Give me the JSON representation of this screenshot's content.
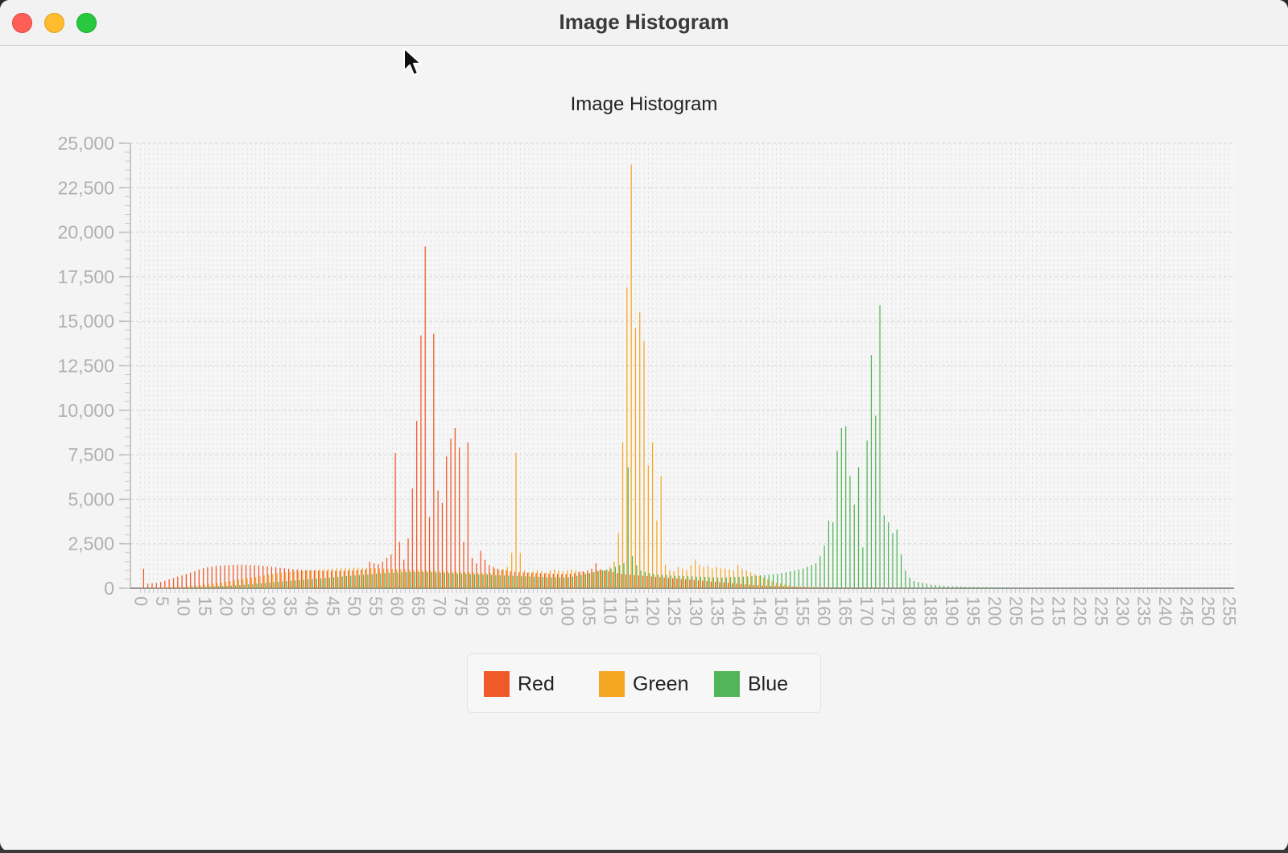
{
  "window": {
    "title": "Image Histogram"
  },
  "chart_data": {
    "type": "bar",
    "title": "Image Histogram",
    "xlabel": "",
    "ylabel": "",
    "ylim": [
      0,
      25000
    ],
    "yticks": [
      0,
      2500,
      5000,
      7500,
      10000,
      12500,
      15000,
      17500,
      20000,
      22500,
      25000
    ],
    "ytick_labels": [
      "0",
      "2,500",
      "5,000",
      "7,500",
      "10,000",
      "12,500",
      "15,000",
      "17,500",
      "20,000",
      "22,500",
      "25,000"
    ],
    "xlim": [
      0,
      255
    ],
    "xticks": [
      0,
      5,
      10,
      15,
      20,
      25,
      30,
      35,
      40,
      45,
      50,
      55,
      60,
      65,
      70,
      75,
      80,
      85,
      90,
      95,
      100,
      105,
      110,
      115,
      120,
      125,
      130,
      135,
      140,
      145,
      150,
      155,
      160,
      165,
      170,
      175,
      180,
      185,
      190,
      195,
      200,
      205,
      210,
      215,
      220,
      225,
      230,
      235,
      240,
      245,
      250,
      255
    ],
    "grid": true,
    "legend_position": "bottom",
    "series": [
      {
        "name": "Red",
        "color": "#f05a28",
        "values": [
          0,
          1100,
          250,
          280,
          300,
          350,
          420,
          500,
          580,
          650,
          720,
          800,
          880,
          960,
          1050,
          1120,
          1180,
          1220,
          1250,
          1270,
          1290,
          1300,
          1310,
          1320,
          1320,
          1310,
          1300,
          1290,
          1280,
          1260,
          1240,
          1210,
          1180,
          1150,
          1120,
          1100,
          1080,
          1060,
          1040,
          1020,
          1010,
          1000,
          995,
          990,
          985,
          980,
          980,
          985,
          990,
          1000,
          1010,
          1020,
          1040,
          1060,
          1500,
          1400,
          1350,
          1500,
          1700,
          1900,
          7600,
          2600,
          1600,
          2800,
          5600,
          9400,
          14200,
          19200,
          4000,
          14300,
          5500,
          4800,
          7400,
          8400,
          9000,
          7900,
          2600,
          8200,
          1700,
          1400,
          2100,
          1600,
          1300,
          1200,
          1100,
          1050,
          1000,
          950,
          920,
          900,
          880,
          870,
          860,
          850,
          840,
          830,
          820,
          810,
          800,
          800,
          800,
          820,
          850,
          900,
          950,
          1000,
          1100,
          1400,
          1050,
          1000,
          950,
          900,
          850,
          800,
          780,
          760,
          740,
          720,
          700,
          680,
          660,
          640,
          620,
          600,
          580,
          560,
          540,
          520,
          500,
          480,
          460,
          440,
          420,
          400,
          380,
          360,
          340,
          320,
          300,
          280,
          260,
          240,
          220,
          200,
          180,
          160,
          150,
          140,
          130,
          120,
          110,
          100,
          95,
          90,
          85,
          80,
          75,
          70,
          65,
          60,
          55,
          50,
          48,
          46,
          44,
          42,
          40,
          38,
          36,
          34,
          32,
          30,
          28,
          26,
          24,
          22,
          20,
          18,
          16,
          14,
          12,
          10,
          9,
          8,
          7,
          6,
          5,
          4,
          3,
          2,
          1,
          1,
          1,
          1,
          1,
          0,
          0,
          0,
          0,
          0,
          0,
          0,
          0,
          0,
          0,
          0,
          0,
          0,
          0,
          0,
          0,
          0,
          0,
          0,
          0,
          0,
          0,
          0,
          0,
          0,
          0,
          0,
          0,
          0,
          0,
          0,
          0,
          0,
          0,
          0,
          0,
          0,
          0,
          0,
          0,
          0,
          0,
          0,
          0,
          0,
          0,
          0,
          0,
          0,
          0,
          0,
          0,
          0,
          0,
          0,
          0,
          0,
          0,
          0,
          0,
          0,
          0,
          0,
          0,
          0,
          0,
          0,
          0,
          0
        ]
      },
      {
        "name": "Green",
        "color": "#f5a623",
        "values": [
          0,
          0,
          20,
          30,
          40,
          50,
          60,
          70,
          80,
          90,
          100,
          120,
          140,
          160,
          180,
          200,
          230,
          260,
          290,
          320,
          360,
          400,
          440,
          480,
          520,
          560,
          600,
          640,
          680,
          720,
          760,
          800,
          840,
          870,
          900,
          920,
          940,
          960,
          980,
          1000,
          1020,
          1040,
          1060,
          1080,
          1090,
          1100,
          1110,
          1120,
          1130,
          1140,
          1150,
          1160,
          1150,
          1140,
          1130,
          1120,
          1110,
          1100,
          1090,
          1080,
          1070,
          1060,
          1050,
          1040,
          1030,
          1020,
          1010,
          1000,
          990,
          980,
          970,
          960,
          950,
          940,
          930,
          920,
          910,
          900,
          890,
          880,
          870,
          860,
          850,
          1100,
          1000,
          1050,
          1200,
          2000,
          7600,
          2000,
          1000,
          900,
          950,
          1000,
          950,
          900,
          1000,
          1050,
          1000,
          950,
          1000,
          1050,
          1000,
          950,
          900,
          850,
          900,
          1000,
          1050,
          1000,
          1200,
          1500,
          3100,
          8200,
          16900,
          23800,
          14600,
          15500,
          13900,
          6900,
          8200,
          3800,
          6300,
          1300,
          1000,
          950,
          1200,
          1100,
          1000,
          1300,
          1600,
          1300,
          1200,
          1250,
          1100,
          1200,
          1150,
          1100,
          1050,
          1000,
          1300,
          1100,
          1000,
          900,
          800,
          700,
          600,
          500,
          400,
          300,
          250,
          200,
          150,
          100,
          80,
          60,
          40,
          30,
          20,
          10,
          5,
          0,
          0,
          0,
          0,
          0,
          0,
          0,
          0,
          0,
          0,
          0,
          0,
          0,
          0,
          0,
          0,
          0,
          0,
          0,
          0,
          0,
          0,
          0,
          0,
          0,
          0,
          0,
          0,
          0,
          0,
          0,
          0,
          0,
          0,
          0,
          0,
          0,
          0,
          0,
          0,
          0,
          0,
          0,
          0,
          0,
          0,
          0,
          0,
          0,
          0,
          0,
          0,
          0,
          0,
          0,
          0,
          0,
          0,
          0,
          0,
          0,
          0,
          0,
          0,
          0,
          0,
          0,
          0,
          0,
          0,
          0,
          0,
          0,
          0,
          0,
          0,
          0,
          0,
          0,
          0,
          0,
          0,
          0,
          0,
          0,
          0,
          0,
          0,
          0,
          0,
          0
        ]
      },
      {
        "name": "Blue",
        "color": "#52b558",
        "values": [
          0,
          0,
          0,
          0,
          0,
          10,
          15,
          20,
          25,
          30,
          40,
          50,
          60,
          70,
          80,
          90,
          100,
          110,
          120,
          130,
          140,
          150,
          160,
          180,
          200,
          220,
          240,
          260,
          280,
          300,
          320,
          340,
          360,
          380,
          400,
          420,
          440,
          460,
          480,
          500,
          520,
          540,
          560,
          580,
          600,
          620,
          640,
          660,
          680,
          700,
          720,
          740,
          760,
          780,
          800,
          820,
          840,
          850,
          860,
          870,
          880,
          890,
          900,
          900,
          900,
          900,
          900,
          900,
          890,
          880,
          870,
          860,
          850,
          840,
          830,
          820,
          810,
          800,
          790,
          780,
          770,
          760,
          750,
          740,
          730,
          720,
          710,
          700,
          690,
          680,
          670,
          660,
          650,
          640,
          630,
          620,
          610,
          600,
          600,
          600,
          620,
          650,
          700,
          750,
          800,
          850,
          900,
          950,
          1000,
          1050,
          1100,
          1200,
          1300,
          1400,
          6800,
          1800,
          1300,
          1000,
          900,
          850,
          800,
          780,
          760,
          740,
          720,
          700,
          690,
          680,
          670,
          660,
          650,
          640,
          630,
          620,
          610,
          600,
          600,
          610,
          620,
          630,
          640,
          650,
          660,
          680,
          700,
          720,
          740,
          760,
          780,
          800,
          850,
          900,
          950,
          1000,
          1050,
          1100,
          1200,
          1300,
          1400,
          1800,
          2400,
          3800,
          3700,
          7700,
          9000,
          9100,
          6300,
          4700,
          6800,
          2300,
          8300,
          13100,
          9700,
          15900,
          4100,
          3700,
          3100,
          3300,
          1900,
          1000,
          600,
          400,
          350,
          300,
          250,
          200,
          180,
          160,
          140,
          130,
          120,
          110,
          100,
          90,
          80,
          75,
          70,
          65,
          60,
          55,
          50,
          45,
          40,
          35,
          30,
          28,
          26,
          24,
          22,
          20,
          18,
          16,
          14,
          12,
          10,
          9,
          8,
          7,
          6,
          5,
          4,
          3,
          2,
          1,
          1,
          0,
          0,
          0,
          0,
          0,
          0,
          0,
          0,
          0,
          0,
          0,
          0,
          0,
          0,
          0,
          0,
          0,
          0,
          0,
          0,
          0,
          0,
          0,
          0,
          0,
          0,
          0,
          0,
          0,
          0,
          0,
          0,
          0,
          0,
          0,
          0,
          0,
          0,
          0,
          0,
          0,
          0,
          0,
          0
        ]
      }
    ]
  },
  "legend": {
    "items": [
      {
        "label": "Red",
        "color": "#f05a28"
      },
      {
        "label": "Green",
        "color": "#f5a623"
      },
      {
        "label": "Blue",
        "color": "#52b558"
      }
    ]
  }
}
